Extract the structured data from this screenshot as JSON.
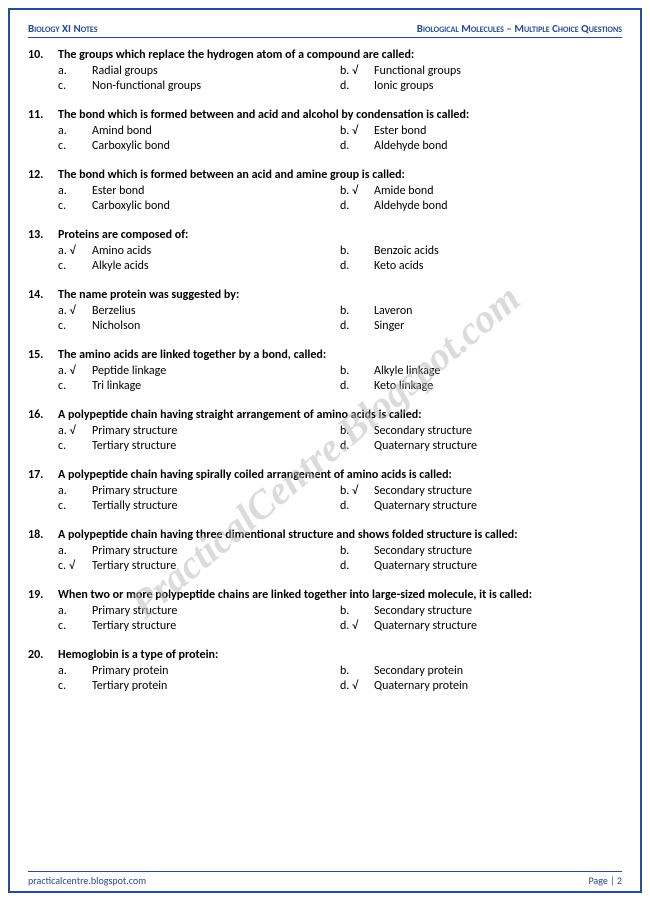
{
  "header": {
    "left": "Biology XI Notes",
    "right": "Biological Molecules – Multiple Choice Questions"
  },
  "footer": {
    "left": "practicalcentre.blogspot.com",
    "right": "Page | 2"
  },
  "watermark": "PracticalCentre.Blogspot.com",
  "questions": [
    {
      "num": "10.",
      "text": "The groups which replace the hydrogen atom of a compound are called:",
      "opts": [
        {
          "l": "a.",
          "t": "Radial groups"
        },
        {
          "l": "b. √",
          "t": "Functional groups"
        },
        {
          "l": "c.",
          "t": "Non-functional groups"
        },
        {
          "l": "d.",
          "t": "Ionic groups"
        }
      ]
    },
    {
      "num": "11.",
      "text": "The bond which is formed between and acid and alcohol by condensation is called:",
      "opts": [
        {
          "l": "a.",
          "t": "Amind bond"
        },
        {
          "l": "b. √",
          "t": "Ester bond"
        },
        {
          "l": "c.",
          "t": "Carboxylic bond"
        },
        {
          "l": "d.",
          "t": "Aldehyde bond"
        }
      ]
    },
    {
      "num": "12.",
      "text": "The bond which is formed between an acid and amine group is called:",
      "opts": [
        {
          "l": "a.",
          "t": "Ester bond"
        },
        {
          "l": "b. √",
          "t": "Amide bond"
        },
        {
          "l": "c.",
          "t": "Carboxylic bond"
        },
        {
          "l": "d.",
          "t": "Aldehyde bond"
        }
      ]
    },
    {
      "num": "13.",
      "text": "Proteins are composed of:",
      "opts": [
        {
          "l": "a. √",
          "t": "Amino acids"
        },
        {
          "l": "b.",
          "t": "Benzoic acids"
        },
        {
          "l": "c.",
          "t": "Alkyle acids"
        },
        {
          "l": "d.",
          "t": "Keto acids"
        }
      ]
    },
    {
      "num": "14.",
      "text": "The name protein was suggested by:",
      "opts": [
        {
          "l": "a. √",
          "t": "Berzelius"
        },
        {
          "l": "b.",
          "t": "Laveron"
        },
        {
          "l": "c.",
          "t": "Nicholson"
        },
        {
          "l": "d.",
          "t": "Singer"
        }
      ]
    },
    {
      "num": "15.",
      "text": "The amino acids are linked together by a bond, called:",
      "opts": [
        {
          "l": "a. √",
          "t": "Peptide linkage"
        },
        {
          "l": "b.",
          "t": "Alkyle linkage"
        },
        {
          "l": "c.",
          "t": "Tri linkage"
        },
        {
          "l": "d.",
          "t": "Keto linkage"
        }
      ]
    },
    {
      "num": "16.",
      "text": "A polypeptide chain having straight arrangement of amino acids is called:",
      "opts": [
        {
          "l": "a. √",
          "t": "Primary structure"
        },
        {
          "l": "b.",
          "t": "Secondary structure"
        },
        {
          "l": "c.",
          "t": "Tertiary structure"
        },
        {
          "l": "d.",
          "t": "Quaternary structure"
        }
      ]
    },
    {
      "num": "17.",
      "text": "A polypeptide chain having spirally coiled arrangement of amino acids is called:",
      "opts": [
        {
          "l": "a.",
          "t": "Primary structure"
        },
        {
          "l": "b. √",
          "t": "Secondary structure"
        },
        {
          "l": "c.",
          "t": "Tertially structure"
        },
        {
          "l": "d.",
          "t": "Quaternary structure"
        }
      ]
    },
    {
      "num": "18.",
      "text": "A polypeptide chain having three dimentional structure and shows folded structure is called:",
      "opts": [
        {
          "l": "a.",
          "t": "Primary structure"
        },
        {
          "l": "b.",
          "t": "Secondary structure"
        },
        {
          "l": "c. √",
          "t": "Tertiary structure"
        },
        {
          "l": "d.",
          "t": "Quaternary structure"
        }
      ]
    },
    {
      "num": "19.",
      "text": "When two or more polypeptide chains are linked together into large-sized molecule, it is called:",
      "opts": [
        {
          "l": "a.",
          "t": "Primary structure"
        },
        {
          "l": "b.",
          "t": "Secondary structure"
        },
        {
          "l": "c.",
          "t": "Tertiary structure"
        },
        {
          "l": "d. √",
          "t": "Quaternary structure"
        }
      ]
    },
    {
      "num": "20.",
      "text": "Hemoglobin is a type of protein:",
      "opts": [
        {
          "l": "a.",
          "t": "Primary protein"
        },
        {
          "l": "b.",
          "t": "Secondary protein"
        },
        {
          "l": "c.",
          "t": "Tertiary protein"
        },
        {
          "l": "d. √",
          "t": "Quaternary protein"
        }
      ]
    }
  ]
}
